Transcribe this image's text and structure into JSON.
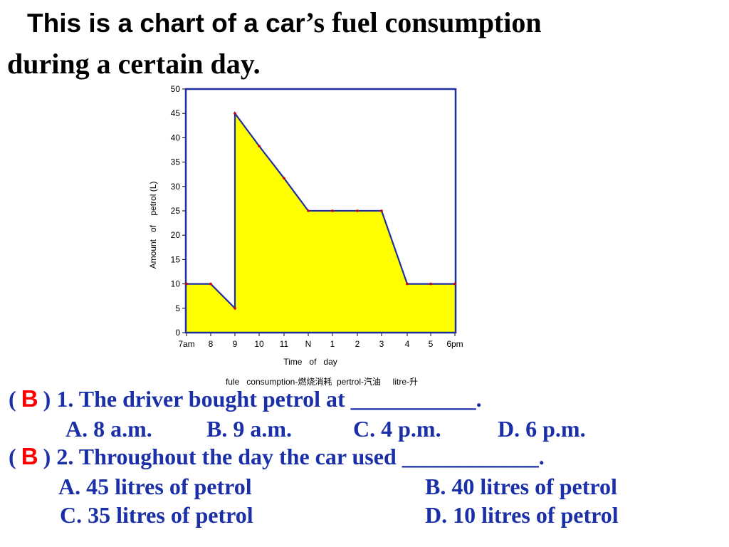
{
  "title": {
    "part1_sans": "This is a chart of a car",
    "part1_serif": "’s fuel consumption",
    "line2": "during a certain day."
  },
  "chart_data": {
    "type": "area",
    "x": [
      "7am",
      "8",
      "9",
      "9",
      "10",
      "11",
      "N",
      "1",
      "2",
      "3",
      "4",
      "5",
      "6pm"
    ],
    "x_hours": [
      7,
      8,
      9,
      9,
      10,
      11,
      12,
      13,
      14,
      15,
      16,
      17,
      18
    ],
    "y": [
      10,
      10,
      5,
      45,
      38.3,
      31.7,
      25,
      25,
      25,
      25,
      10,
      10,
      10
    ],
    "xticks": [
      "7am",
      "8",
      "9",
      "10",
      "11",
      "N",
      "1",
      "2",
      "3",
      "4",
      "5",
      "6pm"
    ],
    "yticks": [
      0,
      5,
      10,
      15,
      20,
      25,
      30,
      35,
      40,
      45,
      50
    ],
    "ylim": [
      0,
      50
    ],
    "xlabel": "Time   of   day",
    "ylabel": "Amount   of    petrol (L)",
    "note": "fule   consumption-燃烧消耗  pertrol-汽油     litre-升",
    "fill_color": "#ffff00",
    "line_color": "#1f2fa0",
    "marker_color": "#cc0000"
  },
  "questions": [
    {
      "answer": "B",
      "text": "1. The driver bought petrol at ___________.",
      "options": [
        "A. 8 a.m.",
        "B. 9 a.m.",
        "C. 4 p.m.",
        "D. 6 p.m."
      ]
    },
    {
      "answer": "B",
      "text": "2. Throughout the day the car used ____________.",
      "options": [
        "A. 45 litres of petrol",
        "B. 40 litres of petrol",
        "C. 35 litres of petrol",
        "D. 10 litres of petrol"
      ]
    }
  ],
  "colors": {
    "question_text": "#1a2fa8",
    "answer": "#ff0000"
  }
}
